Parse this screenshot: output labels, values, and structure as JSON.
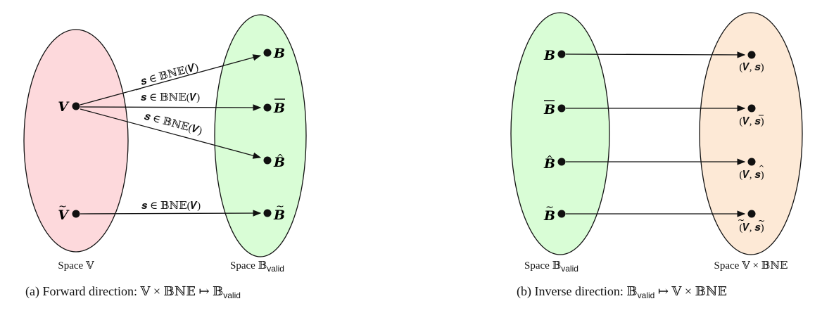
{
  "panel_a": {
    "left_space": "Space 𝕍",
    "right_space_prefix": "Space 𝔹",
    "right_space_sub": "valid",
    "caption_prefix": "(a) Forward direction: 𝕍 × 𝔹ℕ𝔼 ↦ 𝔹",
    "caption_sub": "valid",
    "sources": {
      "v": "V",
      "v_tilde": "V"
    },
    "targets": {
      "b": "B",
      "b_bar": "B",
      "b_hat": "B",
      "b_tilde": "B"
    },
    "edge_labels": {
      "s": "𝒔 ∈ 𝔹ℕ𝔼(𝑽)",
      "s_bar": "𝒔 ∈ 𝔹ℕ𝔼(𝑽)",
      "s_hat": "𝒔 ∈ 𝔹ℕ𝔼(𝑽)",
      "s_tilde": "𝒔 ∈ 𝔹ℕ𝔼(𝑽)"
    }
  },
  "panel_b": {
    "left_space_prefix": "Space 𝔹",
    "left_space_sub": "valid",
    "right_space": "Space 𝕍 × 𝔹ℕ𝔼",
    "caption_prefix": "(b) Inverse direction: 𝔹",
    "caption_sub": "valid",
    "caption_suffix": " ↦ 𝕍 × 𝔹ℕ𝔼",
    "sources": {
      "b": "B",
      "b_bar": "B",
      "b_hat": "B",
      "b_tilde": "B"
    },
    "targets": {
      "t1": "(𝑽, 𝒔)",
      "t2": "(𝑽, 𝒔)",
      "t3": "(𝑽, 𝒔)",
      "t4": "(𝑽, 𝒔)"
    }
  },
  "colors": {
    "pink_fill": "#fdd9dc",
    "green_fill": "#d9fdd6",
    "peach_fill": "#fde9d6",
    "stroke": "#111111"
  }
}
